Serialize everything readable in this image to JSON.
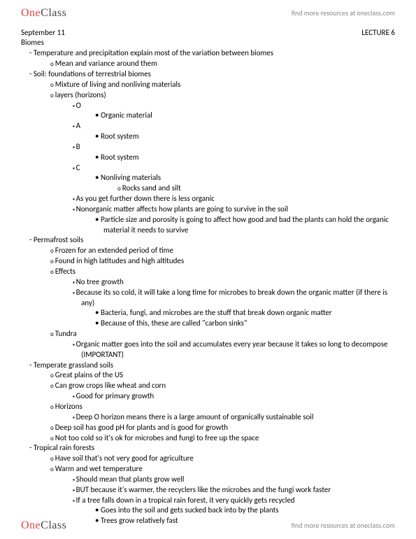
{
  "brand": {
    "part1": "One",
    "part2": "Class"
  },
  "header_link": "find more resources at oneclass.com",
  "footer_link": "find more resources at oneclass.com",
  "date": "September 11",
  "lecture": "LECTURE 6",
  "title": "Biomes",
  "notes": {
    "i1": "Temperature and precipitation explain most of the variation between biomes",
    "i1a": "Mean and variance around them",
    "i2": "Soil: foundations of terrestrial biomes",
    "i2a": "Mixture of living and nonliving materials",
    "i2b": "layers (horizons)",
    "i2b1": "O",
    "i2b1a": "Organic material",
    "i2b2": "A",
    "i2b2a": "Root system",
    "i2b3": "B",
    "i2b3a": "Root system",
    "i2b4": "C",
    "i2b4a": "Nonliving materials",
    "i2b4a1": "Rocks sand and silt",
    "i2b5": "As you get further down there is less organic",
    "i2b6": "Nonorganic matter affects how plants are going to survive in the soil",
    "i2b6a": "Particle size and porosity is going to affect how good and bad the plants can hold the organic material it needs to survive",
    "i3": "Permafrost soils",
    "i3a": "Frozen for an extended period of time",
    "i3b": "Found in high latitudes and high altitudes",
    "i3c": "Effects",
    "i3c1": "No tree growth",
    "i3c2": "Because its so cold, it will take a long time for microbes to break down the organic matter (if there is any)",
    "i3c2a": "Bacteria, fungi, and microbes are the stuff that break down organic matter",
    "i3c2b": "Because of this, these are called \"carbon sinks\"",
    "i3d": "Tundra",
    "i3d1": "Organic matter goes into the soil and accumulates every year because it takes so long to decompose (IMPORTANT)",
    "i4": "Temperate grassland soils",
    "i4a": "Great plains of the US",
    "i4b": "Can grow crops like wheat and corn",
    "i4b1": "Good for primary growth",
    "i4c": "Horizons",
    "i4c1": "Deep O horizon means there is a large amount of organically sustainable soil",
    "i4d": "Deep soil has good pH for plants and is good for growth",
    "i4e": "Not too cold so it's ok for microbes and fungi to free up the space",
    "i5": "Tropical rain forests",
    "i5a": "Have soil that's not very good for agriculture",
    "i5b": "Warm and wet temperature",
    "i5b1": "Should mean that plants grow well",
    "i5b2": "BUT because it's warmer, the recyclers like the microbes and the fungi work faster",
    "i5b3": "If a tree falls down in a tropical rain forest, it very quickly gets recycled",
    "i5b3a": "Goes into the soil and gets sucked back into by the plants",
    "i5b3b": "Trees grow relatively fast"
  }
}
